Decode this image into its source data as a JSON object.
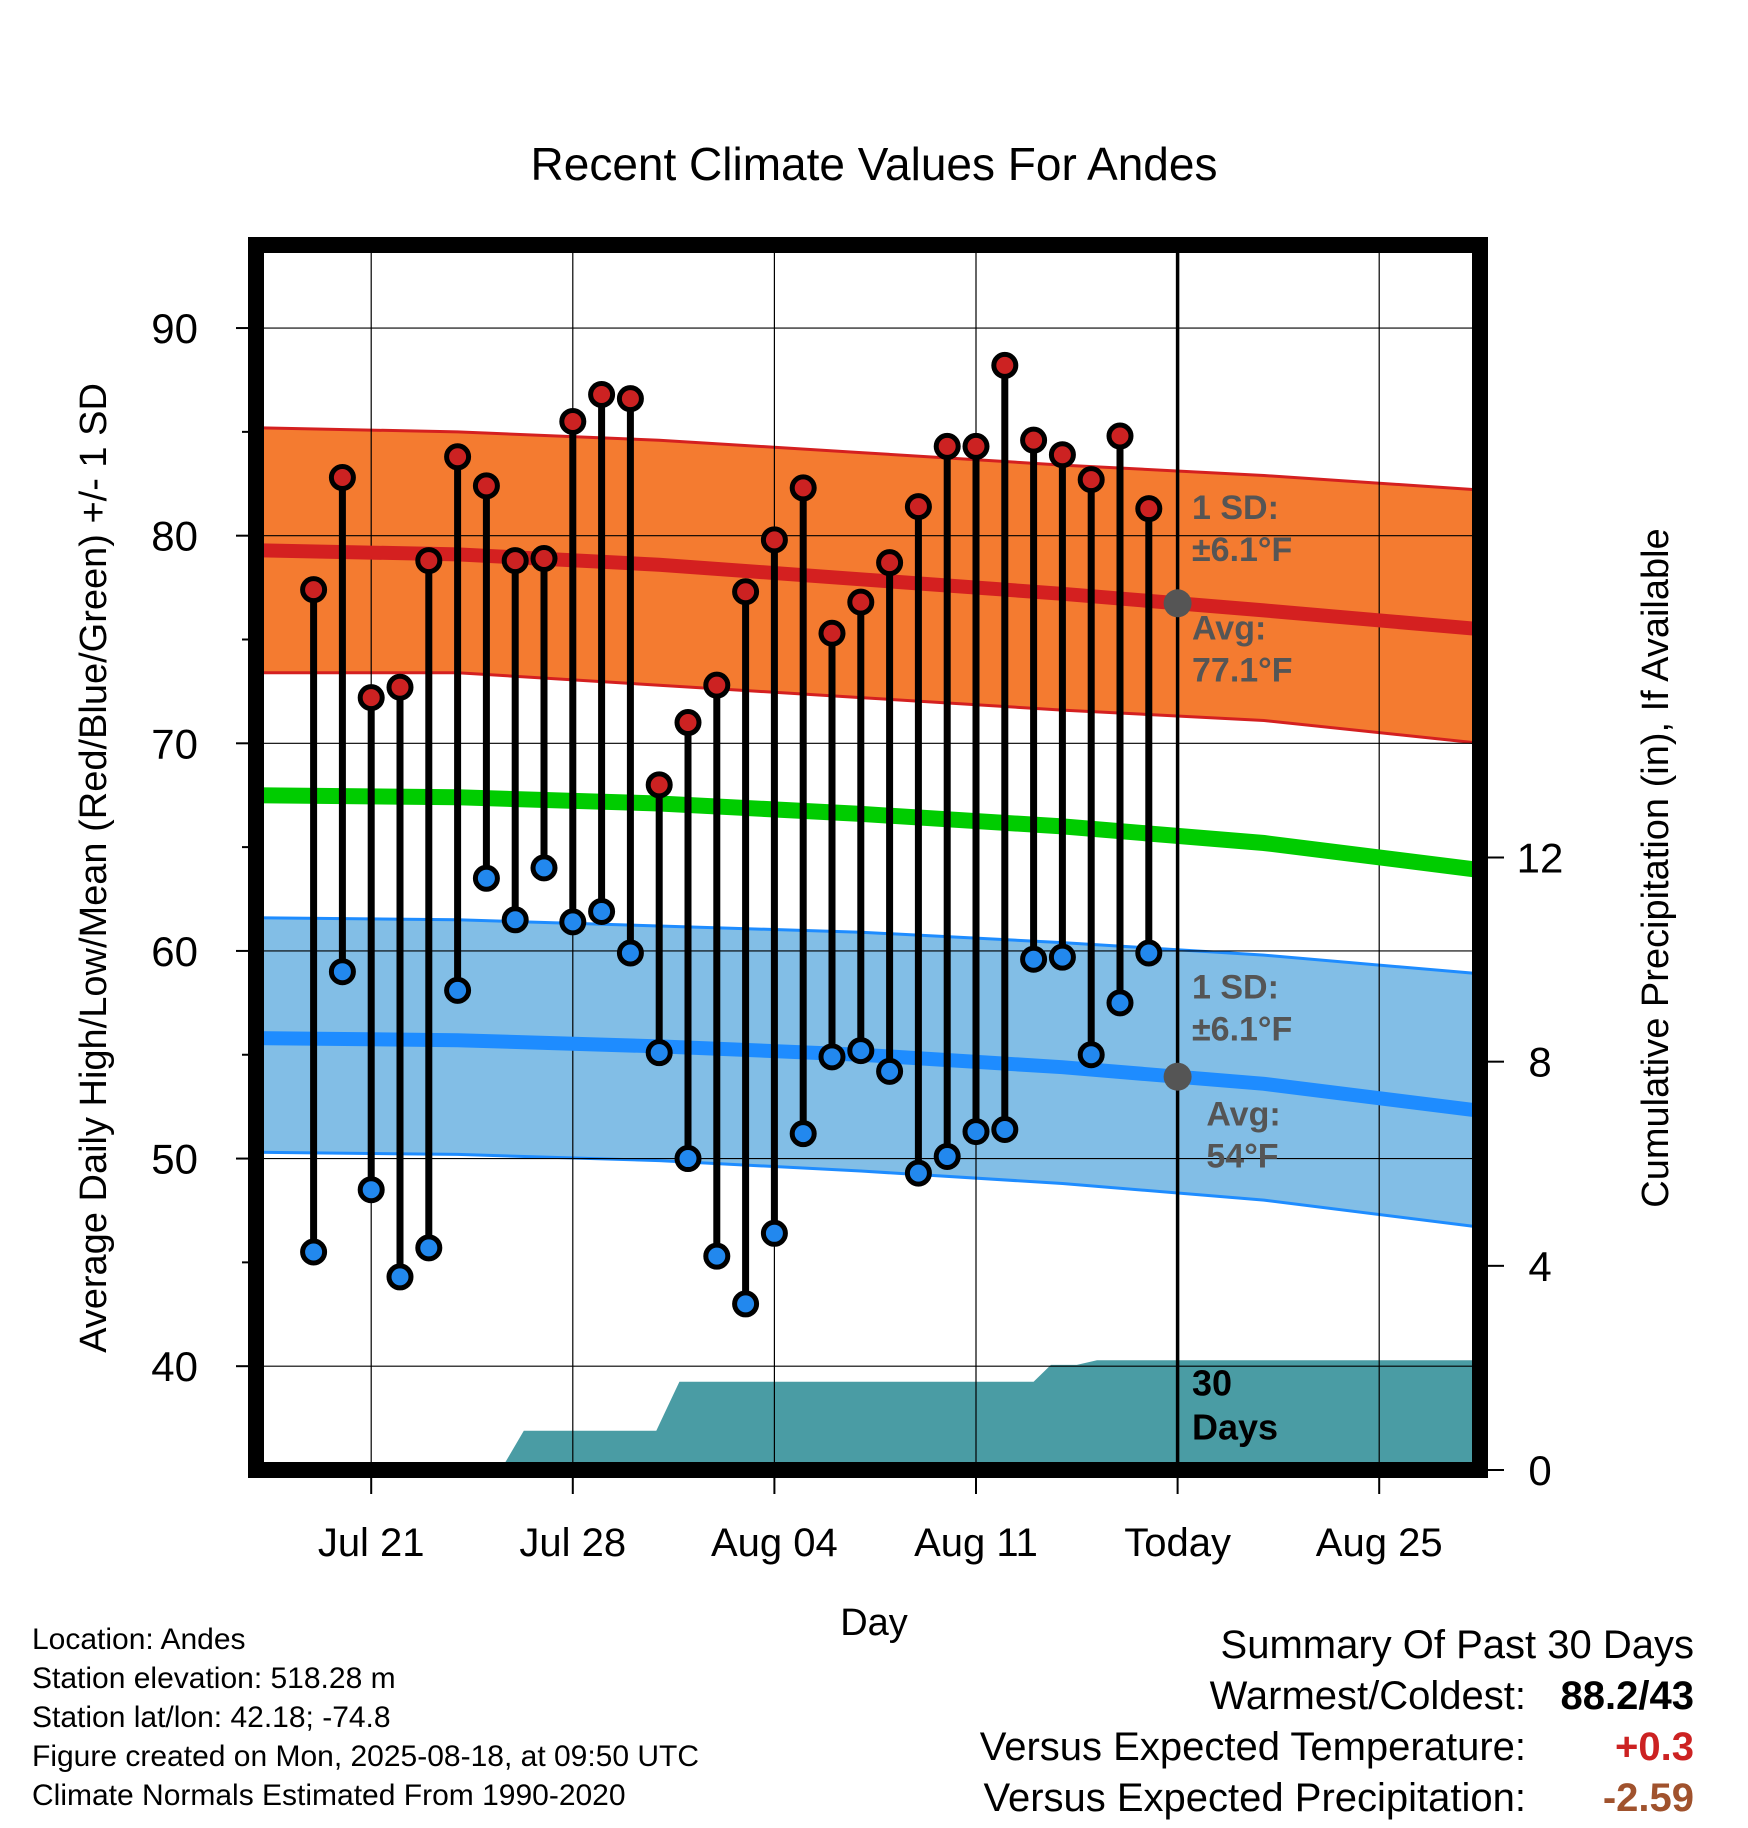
{
  "chart_data": {
    "type": "line",
    "title": "Recent Climate Values For Andes",
    "xlabel": "Day",
    "ylabel": "Average Daily High/Low/Mean (Red/Blue/Green) +/- 1 SD",
    "y2label": "Cumulative Precipitation (in), If Available",
    "ylim": [
      35,
      94
    ],
    "y2lim": [
      0,
      24
    ],
    "x_ticks": [
      "Jul 21",
      "Jul 28",
      "Aug 04",
      "Aug 11",
      "Today",
      "Aug 25"
    ],
    "y_ticks": [
      40,
      50,
      60,
      70,
      80,
      90
    ],
    "y2_ticks": [
      0,
      4,
      8,
      12
    ],
    "grid": true,
    "today_index": 30,
    "x_range": [
      -2,
      40.5
    ],
    "highs": [
      77.4,
      82.8,
      72.2,
      72.7,
      78.8,
      83.8,
      82.4,
      78.8,
      78.9,
      85.5,
      86.8,
      86.6,
      68.0,
      71.0,
      72.8,
      77.3,
      79.8,
      82.3,
      75.3,
      76.8,
      78.7,
      81.4,
      84.3,
      84.3,
      88.2,
      84.6,
      83.9,
      82.7,
      84.8,
      81.3
    ],
    "lows": [
      45.5,
      59.0,
      48.5,
      44.3,
      45.7,
      58.1,
      63.5,
      61.5,
      64.0,
      61.4,
      61.9,
      59.9,
      55.1,
      50.0,
      45.3,
      43.0,
      46.4,
      51.2,
      54.9,
      55.2,
      54.2,
      49.3,
      50.1,
      51.3,
      51.4,
      59.6,
      59.7,
      55.0,
      57.5,
      59.9
    ],
    "normal_high": {
      "x": [
        -2,
        5,
        12,
        19,
        26,
        33,
        40.5
      ],
      "avg": [
        79.3,
        79.1,
        78.6,
        77.9,
        77.2,
        76.4,
        75.5
      ],
      "upper": [
        85.2,
        85.0,
        84.6,
        84.0,
        83.4,
        82.9,
        82.2
      ],
      "lower": [
        73.4,
        73.4,
        72.8,
        72.2,
        71.6,
        71.1,
        70.0
      ]
    },
    "normal_low": {
      "x": [
        -2,
        5,
        12,
        19,
        26,
        33,
        40.5
      ],
      "avg": [
        55.8,
        55.7,
        55.4,
        55.0,
        54.4,
        53.6,
        52.3
      ],
      "upper": [
        61.6,
        61.5,
        61.2,
        60.9,
        60.4,
        59.8,
        58.9
      ],
      "lower": [
        50.3,
        50.2,
        49.9,
        49.4,
        48.8,
        48.0,
        46.7
      ]
    },
    "normal_mean": {
      "x": [
        -2,
        5,
        12,
        19,
        26,
        33,
        40.5
      ],
      "avg": [
        67.5,
        67.4,
        67.1,
        66.6,
        66.0,
        65.2,
        63.9
      ]
    },
    "precip_cumulative": {
      "x": [
        6.5,
        7.3,
        9.9,
        10.7,
        11.9,
        12.7,
        15.8,
        16.4,
        17.8,
        19.0,
        20.0,
        24.0,
        25.0,
        25.6,
        26.5,
        27.2,
        29.0,
        30,
        40.5
      ],
      "y": [
        0,
        0.77,
        0.77,
        0.77,
        0.77,
        1.73,
        1.73,
        1.73,
        1.73,
        1.73,
        1.73,
        1.73,
        1.73,
        2.06,
        2.06,
        2.15,
        2.15,
        2.15,
        2.15
      ]
    },
    "annotations": {
      "high_sd": "1 SD:\n±6.1°F",
      "high_avg": "Avg:\n77.1°F",
      "low_sd": "1 SD:\n±6.1°F",
      "low_avg": "Avg:\n54°F",
      "precip_days": "30\nDays"
    },
    "colors": {
      "high_band": "#F47B30",
      "high_line": "#D42020",
      "low_band": "#82BEE6",
      "low_line": "#1E8CFF",
      "mean_line": "#00CC00",
      "precip": "#4A9CA4",
      "high_dot": "#CC2222",
      "low_dot": "#2288EE",
      "today_marker": "#555555",
      "annotation_text": "#555555"
    }
  },
  "footer": {
    "location": "Location: Andes",
    "elevation": "Station elevation: 518.28 m",
    "latlon": "Station lat/lon: 42.18; -74.8",
    "created": "Figure created on Mon, 2025-08-18, at 09:50 UTC",
    "normals": "Climate Normals Estimated From 1990-2020"
  },
  "summary": {
    "heading": "Summary Of Past 30 Days",
    "warm_cold_label": "Warmest/Coldest:",
    "warm_cold_value": "88.2/43",
    "temp_label": "Versus Expected Temperature:",
    "temp_value": "+0.3",
    "temp_color": "#CC2222",
    "precip_label": "Versus Expected Precipitation:",
    "precip_value": "-2.59",
    "precip_color": "#A0522D"
  }
}
